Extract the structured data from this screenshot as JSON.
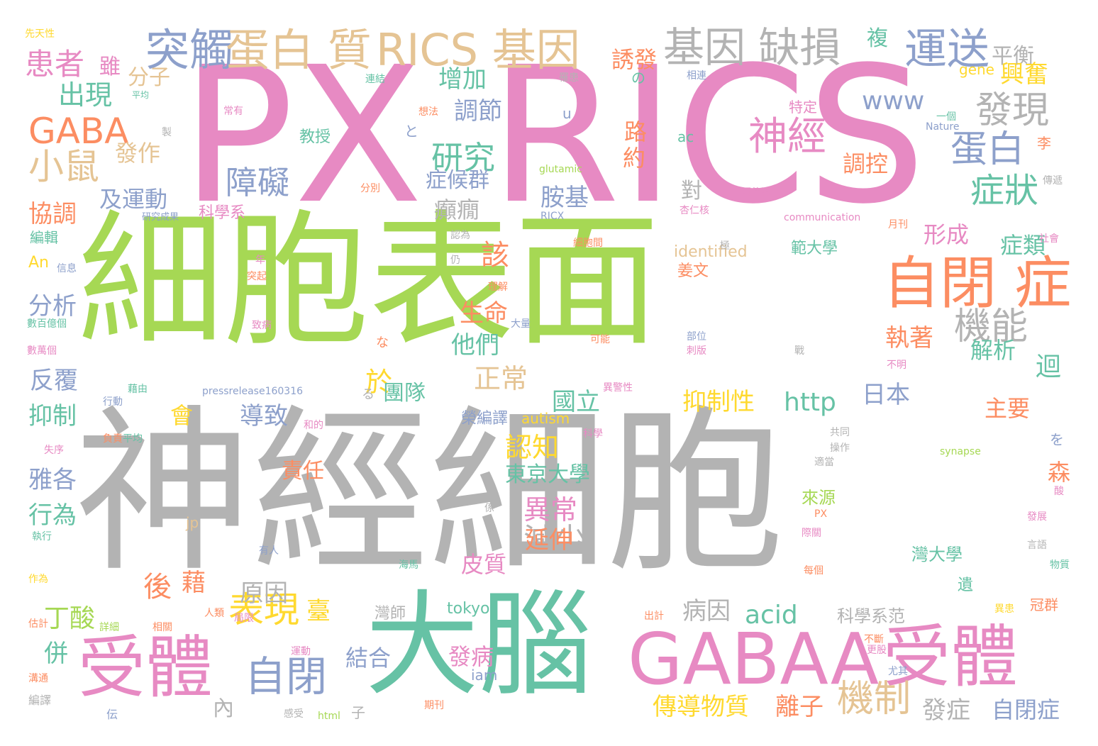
{
  "palette": {
    "pink": "#e78ac3",
    "green": "#a6d854",
    "gray": "#b3b3b3",
    "teal": "#66c2a5",
    "orange": "#fc8d62",
    "blue": "#8da0cb",
    "tan": "#e5c494",
    "yellow": "#ffd92f"
  },
  "words": [
    {
      "text": "PX",
      "color": "pink"
    },
    {
      "text": "RICS",
      "color": "pink"
    },
    {
      "text": "細胞表面",
      "color": "green"
    },
    {
      "text": "神經細胞",
      "color": "gray"
    },
    {
      "text": "大腦",
      "color": "teal"
    },
    {
      "text": "GABAA",
      "color": "pink"
    },
    {
      "text": "受體",
      "color": "pink"
    },
    {
      "text": "受體",
      "color": "pink"
    },
    {
      "text": "自閉 症",
      "color": "orange"
    },
    {
      "text": "突觸",
      "color": "blue"
    },
    {
      "text": "蛋白 質",
      "color": "tan"
    },
    {
      "text": "RICS 基因",
      "color": "tan"
    },
    {
      "text": "基因 缺損",
      "color": "gray"
    },
    {
      "text": "運送",
      "color": "blue"
    },
    {
      "text": "平衡",
      "color": "gray"
    },
    {
      "text": "GABA",
      "color": "orange"
    },
    {
      "text": "小鼠",
      "color": "tan"
    },
    {
      "text": "患者",
      "color": "pink"
    },
    {
      "text": "出現",
      "color": "teal"
    },
    {
      "text": "神經",
      "color": "pink"
    },
    {
      "text": "發現",
      "color": "gray"
    },
    {
      "text": "蛋白",
      "color": "blue"
    },
    {
      "text": "症狀",
      "color": "teal"
    },
    {
      "text": "研究",
      "color": "teal"
    },
    {
      "text": "障礙",
      "color": "blue"
    },
    {
      "text": "機能",
      "color": "gray"
    },
    {
      "text": "自閉",
      "color": "blue"
    },
    {
      "text": "表現",
      "color": "yellow"
    },
    {
      "text": "機制",
      "color": "tan"
    },
    {
      "text": "減少",
      "color": "gray"
    },
    {
      "text": "原因",
      "color": "gray"
    },
    {
      "text": "調節",
      "color": "blue"
    },
    {
      "text": "增加",
      "color": "teal"
    },
    {
      "text": "分子",
      "color": "tan"
    },
    {
      "text": "發作",
      "color": "tan"
    },
    {
      "text": "協調",
      "color": "orange"
    },
    {
      "text": "及運動",
      "color": "blue"
    },
    {
      "text": "分析",
      "color": "blue"
    },
    {
      "text": "反覆",
      "color": "blue"
    },
    {
      "text": "抑制",
      "color": "teal"
    },
    {
      "text": "雅各",
      "color": "blue"
    },
    {
      "text": "行為",
      "color": "teal"
    },
    {
      "text": "後",
      "color": "orange"
    },
    {
      "text": "丁酸",
      "color": "green"
    },
    {
      "text": "併",
      "color": "teal"
    },
    {
      "text": "雖",
      "color": "pink"
    },
    {
      "text": "誘發",
      "color": "orange"
    },
    {
      "text": "複",
      "color": "teal"
    },
    {
      "text": "興奮",
      "color": "yellow"
    },
    {
      "text": "www",
      "color": "blue"
    },
    {
      "text": "路",
      "color": "orange"
    },
    {
      "text": "約",
      "color": "orange"
    },
    {
      "text": "症候群",
      "color": "blue"
    },
    {
      "text": "胺基",
      "color": "blue"
    },
    {
      "text": "癲癇",
      "color": "gray"
    },
    {
      "text": "該",
      "color": "orange"
    },
    {
      "text": "形成",
      "color": "pink"
    },
    {
      "text": "症類",
      "color": "teal"
    },
    {
      "text": "調控",
      "color": "orange"
    },
    {
      "text": "生命",
      "color": "orange"
    },
    {
      "text": "他們",
      "color": "teal"
    },
    {
      "text": "正常",
      "color": "tan"
    },
    {
      "text": "於",
      "color": "yellow"
    },
    {
      "text": "執著",
      "color": "orange"
    },
    {
      "text": "解析",
      "color": "teal"
    },
    {
      "text": "迴",
      "color": "teal"
    },
    {
      "text": "主要",
      "color": "orange"
    },
    {
      "text": "抑制性",
      "color": "yellow"
    },
    {
      "text": "http",
      "color": "teal"
    },
    {
      "text": "日本",
      "color": "blue"
    },
    {
      "text": "團隊",
      "color": "teal"
    },
    {
      "text": "國立",
      "color": "teal"
    },
    {
      "text": "導致",
      "color": "blue"
    },
    {
      "text": "會",
      "color": "yellow"
    },
    {
      "text": "認知",
      "color": "yellow"
    },
    {
      "text": "東京大學",
      "color": "teal"
    },
    {
      "text": "異常",
      "color": "pink"
    },
    {
      "text": "延伸",
      "color": "orange"
    },
    {
      "text": "皮質",
      "color": "pink"
    },
    {
      "text": "藉",
      "color": "orange"
    },
    {
      "text": "責任",
      "color": "orange"
    },
    {
      "text": "病因",
      "color": "gray"
    },
    {
      "text": "acid",
      "color": "teal"
    },
    {
      "text": "臺",
      "color": "yellow"
    },
    {
      "text": "結合",
      "color": "blue"
    },
    {
      "text": "發病",
      "color": "pink"
    },
    {
      "text": "傳導物質",
      "color": "yellow"
    },
    {
      "text": "離子",
      "color": "orange"
    },
    {
      "text": "發症",
      "color": "gray"
    },
    {
      "text": "自閉症",
      "color": "blue"
    },
    {
      "text": "內",
      "color": "gray"
    },
    {
      "text": "範大學",
      "color": "teal"
    },
    {
      "text": "姜文",
      "color": "orange"
    },
    {
      "text": "來源",
      "color": "green"
    },
    {
      "text": "科學系范",
      "color": "gray"
    },
    {
      "text": "灣大學",
      "color": "teal"
    },
    {
      "text": "森",
      "color": "orange"
    },
    {
      "text": "遺",
      "color": "teal"
    },
    {
      "text": "榮編譯",
      "color": "blue"
    },
    {
      "text": "對",
      "color": "gray"
    },
    {
      "text": "科學系",
      "color": "pink"
    },
    {
      "text": "教授",
      "color": "teal"
    },
    {
      "text": "特定",
      "color": "pink"
    },
    {
      "text": "identified",
      "color": "tan"
    },
    {
      "text": "autism",
      "color": "yellow"
    },
    {
      "text": "tokyo",
      "color": "teal"
    },
    {
      "text": "iam",
      "color": "blue"
    },
    {
      "text": "灣師",
      "color": "gray"
    },
    {
      "text": "編輯",
      "color": "teal"
    },
    {
      "text": "An",
      "color": "yellow"
    },
    {
      "text": "gene",
      "color": "yellow"
    },
    {
      "text": "ac",
      "color": "teal"
    },
    {
      "text": "u",
      "color": "blue"
    },
    {
      "text": "の",
      "color": "teal"
    },
    {
      "text": "と",
      "color": "blue"
    },
    {
      "text": "jp",
      "color": "tan"
    },
    {
      "text": "李",
      "color": "orange"
    },
    {
      "text": "先天性",
      "color": "yellow"
    },
    {
      "text": "平均",
      "color": "teal"
    },
    {
      "text": "製",
      "color": "gray"
    },
    {
      "text": "常有",
      "color": "pink"
    },
    {
      "text": "想法",
      "color": "orange"
    },
    {
      "text": "連結",
      "color": "teal"
    },
    {
      "text": "罹患",
      "color": "gray"
    },
    {
      "text": "相連",
      "color": "blue"
    },
    {
      "text": "一個",
      "color": "teal"
    },
    {
      "text": "Nature",
      "color": "blue"
    },
    {
      "text": "glutamic",
      "color": "green"
    },
    {
      "text": "分別",
      "color": "orange"
    },
    {
      "text": "RICX",
      "color": "blue"
    },
    {
      "text": "兩傳導",
      "color": "pink"
    },
    {
      "text": "杏仁核",
      "color": "pink"
    },
    {
      "text": "communication",
      "color": "pink"
    },
    {
      "text": "研究成果",
      "color": "blue"
    },
    {
      "text": "細胞間",
      "color": "orange"
    },
    {
      "text": "認為",
      "color": "gray"
    },
    {
      "text": "仍",
      "color": "gray"
    },
    {
      "text": "年",
      "color": "pink"
    },
    {
      "text": "突起",
      "color": "orange"
    },
    {
      "text": "信息",
      "color": "blue"
    },
    {
      "text": "理解",
      "color": "orange"
    },
    {
      "text": "數百億個",
      "color": "teal"
    },
    {
      "text": "數萬個",
      "color": "pink"
    },
    {
      "text": "致病",
      "color": "pink"
    },
    {
      "text": "大量",
      "color": "blue"
    },
    {
      "text": "可能",
      "color": "orange"
    },
    {
      "text": "部位",
      "color": "blue"
    },
    {
      "text": "刺版",
      "color": "pink"
    },
    {
      "text": "戰",
      "color": "gray"
    },
    {
      "text": "不明",
      "color": "pink"
    },
    {
      "text": "月刊",
      "color": "orange"
    },
    {
      "text": "社會",
      "color": "pink"
    },
    {
      "text": "傳遞",
      "color": "gray"
    },
    {
      "text": "極",
      "color": "gray"
    },
    {
      "text": "pressrelease160316",
      "color": "blue"
    },
    {
      "text": "藉由",
      "color": "teal"
    },
    {
      "text": "異警性",
      "color": "pink"
    },
    {
      "text": "行動",
      "color": "blue"
    },
    {
      "text": "負責",
      "color": "orange"
    },
    {
      "text": "平均",
      "color": "teal"
    },
    {
      "text": "失序",
      "color": "pink"
    },
    {
      "text": "科學",
      "color": "pink"
    },
    {
      "text": "共同",
      "color": "gray"
    },
    {
      "text": "操作",
      "color": "gray"
    },
    {
      "text": "適當",
      "color": "gray"
    },
    {
      "text": "synapse",
      "color": "green"
    },
    {
      "text": "を",
      "color": "blue"
    },
    {
      "text": "酸",
      "color": "pink"
    },
    {
      "text": "PX",
      "color": "orange"
    },
    {
      "text": "有人",
      "color": "blue"
    },
    {
      "text": "海馬",
      "color": "teal"
    },
    {
      "text": "每個",
      "color": "orange"
    },
    {
      "text": "係",
      "color": "gray"
    },
    {
      "text": "執行",
      "color": "teal"
    },
    {
      "text": "作為",
      "color": "yellow"
    },
    {
      "text": "估計",
      "color": "orange"
    },
    {
      "text": "詳細",
      "color": "green"
    },
    {
      "text": "相關",
      "color": "orange"
    },
    {
      "text": "人類",
      "color": "orange"
    },
    {
      "text": "局限",
      "color": "pink"
    },
    {
      "text": "溝通",
      "color": "orange"
    },
    {
      "text": "編譯",
      "color": "gray"
    },
    {
      "text": "伝",
      "color": "blue"
    },
    {
      "text": "感受",
      "color": "gray"
    },
    {
      "text": "html",
      "color": "green"
    },
    {
      "text": "子",
      "color": "gray"
    },
    {
      "text": "期刊",
      "color": "orange"
    },
    {
      "text": "運動",
      "color": "pink"
    },
    {
      "text": "出計",
      "color": "orange"
    },
    {
      "text": "不斷",
      "color": "orange"
    },
    {
      "text": "更股",
      "color": "pink"
    },
    {
      "text": "尤其",
      "color": "blue"
    },
    {
      "text": "冠群",
      "color": "orange"
    },
    {
      "text": "異患",
      "color": "yellow"
    },
    {
      "text": "物質",
      "color": "teal"
    },
    {
      "text": "發展",
      "color": "pink"
    },
    {
      "text": "言語",
      "color": "gray"
    },
    {
      "text": "る",
      "color": "gray"
    },
    {
      "text": "な",
      "color": "orange"
    },
    {
      "text": "和的",
      "color": "pink"
    },
    {
      "text": "際關",
      "color": "pink"
    }
  ]
}
